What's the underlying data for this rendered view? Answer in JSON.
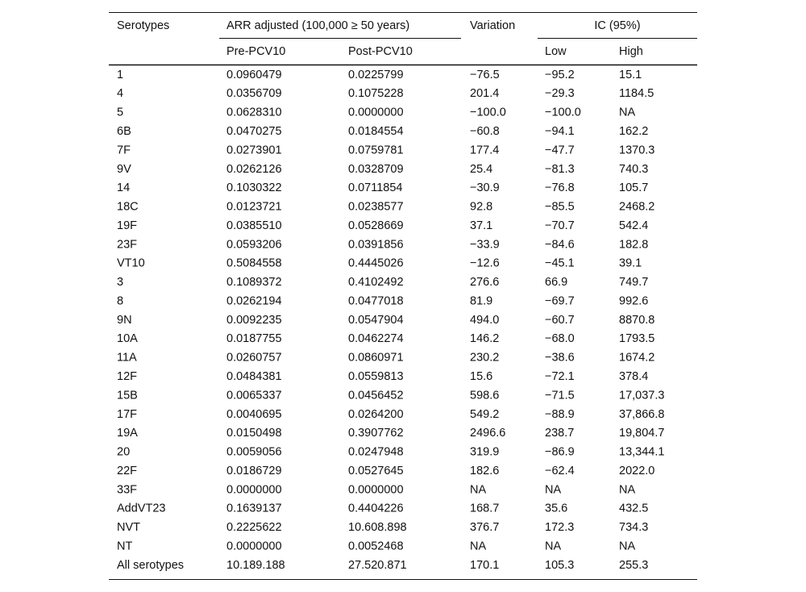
{
  "table": {
    "header": {
      "row1": [
        "Serotypes",
        "ARR adjusted (100,000 ≥ 50 years)",
        "Variation",
        "IC (95%)"
      ],
      "row2": [
        "Pre-PCV10",
        "Post-PCV10",
        "Low",
        "High"
      ]
    },
    "rows": [
      [
        "1",
        "0.0960479",
        "0.0225799",
        "−76.5",
        "−95.2",
        "15.1"
      ],
      [
        "4",
        "0.0356709",
        "0.1075228",
        "201.4",
        "−29.3",
        "1184.5"
      ],
      [
        "5",
        "0.0628310",
        "0.0000000",
        "−100.0",
        "−100.0",
        "NA"
      ],
      [
        "6B",
        "0.0470275",
        "0.0184554",
        "−60.8",
        "−94.1",
        "162.2"
      ],
      [
        "7F",
        "0.0273901",
        "0.0759781",
        "177.4",
        "−47.7",
        "1370.3"
      ],
      [
        "9V",
        "0.0262126",
        "0.0328709",
        "25.4",
        "−81.3",
        "740.3"
      ],
      [
        "14",
        "0.1030322",
        "0.0711854",
        "−30.9",
        "−76.8",
        "105.7"
      ],
      [
        "18C",
        "0.0123721",
        "0.0238577",
        "92.8",
        "−85.5",
        "2468.2"
      ],
      [
        "19F",
        "0.0385510",
        "0.0528669",
        "37.1",
        "−70.7",
        "542.4"
      ],
      [
        "23F",
        "0.0593206",
        "0.0391856",
        "−33.9",
        "−84.6",
        "182.8"
      ],
      [
        "VT10",
        "0.5084558",
        "0.4445026",
        "−12.6",
        "−45.1",
        "39.1"
      ],
      [
        "3",
        "0.1089372",
        "0.4102492",
        "276.6",
        "66.9",
        "749.7"
      ],
      [
        "8",
        "0.0262194",
        "0.0477018",
        "81.9",
        "−69.7",
        "992.6"
      ],
      [
        "9N",
        "0.0092235",
        "0.0547904",
        "494.0",
        "−60.7",
        "8870.8"
      ],
      [
        "10A",
        "0.0187755",
        "0.0462274",
        "146.2",
        "−68.0",
        "1793.5"
      ],
      [
        "11A",
        "0.0260757",
        "0.0860971",
        "230.2",
        "−38.6",
        "1674.2"
      ],
      [
        "12F",
        "0.0484381",
        "0.0559813",
        "15.6",
        "−72.1",
        "378.4"
      ],
      [
        "15B",
        "0.0065337",
        "0.0456452",
        "598.6",
        "−71.5",
        "17,037.3"
      ],
      [
        "17F",
        "0.0040695",
        "0.0264200",
        "549.2",
        "−88.9",
        "37,866.8"
      ],
      [
        "19A",
        "0.0150498",
        "0.3907762",
        "2496.6",
        "238.7",
        "19,804.7"
      ],
      [
        "20",
        "0.0059056",
        "0.0247948",
        "319.9",
        "−86.9",
        "13,344.1"
      ],
      [
        "22F",
        "0.0186729",
        "0.0527645",
        "182.6",
        "−62.4",
        "2022.0"
      ],
      [
        "33F",
        "0.0000000",
        "0.0000000",
        "NA",
        "NA",
        "NA"
      ],
      [
        "AddVT23",
        "0.1639137",
        "0.4404226",
        "168.7",
        "35.6",
        "432.5"
      ],
      [
        "NVT",
        "0.2225622",
        "10.608.898",
        "376.7",
        "172.3",
        "734.3"
      ],
      [
        "NT",
        "0.0000000",
        "0.0052468",
        "NA",
        "NA",
        "NA"
      ],
      [
        "All serotypes",
        "10.189.188",
        "27.520.871",
        "170.1",
        "105.3",
        "255.3"
      ]
    ]
  }
}
